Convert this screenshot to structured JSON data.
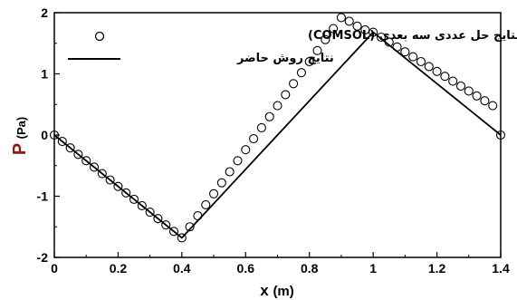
{
  "chart_data": {
    "type": "line",
    "xlabel_main": "x",
    "xlabel_unit": "(m)",
    "ylabel_main": "P",
    "ylabel_unit": "(Pa)",
    "xlim": [
      0,
      1.4
    ],
    "ylim": [
      -2,
      2
    ],
    "x_ticks": [
      "0",
      "0.2",
      "0.4",
      "0.6",
      "0.8",
      "1",
      "1.2",
      "1.4"
    ],
    "y_ticks": [
      "-2",
      "-1",
      "0",
      "1",
      "2"
    ],
    "grid": false,
    "legend_position": "top-left",
    "series": [
      {
        "name": "نتایج حل عددی سه بعدی (COMSOL)",
        "style": "markers",
        "marker": "open-circle",
        "x": [
          0,
          0.025,
          0.05,
          0.075,
          0.1,
          0.125,
          0.15,
          0.175,
          0.2,
          0.225,
          0.25,
          0.275,
          0.3,
          0.325,
          0.35,
          0.375,
          0.4,
          0.425,
          0.45,
          0.475,
          0.5,
          0.525,
          0.55,
          0.575,
          0.6,
          0.625,
          0.65,
          0.675,
          0.7,
          0.725,
          0.75,
          0.775,
          0.8,
          0.825,
          0.85,
          0.875,
          0.9,
          0.925,
          0.95,
          0.975,
          1.0,
          1.025,
          1.05,
          1.075,
          1.1,
          1.125,
          1.15,
          1.175,
          1.2,
          1.225,
          1.25,
          1.275,
          1.3,
          1.325,
          1.35,
          1.375,
          1.4
        ],
        "y": [
          0,
          -0.105,
          -0.21,
          -0.315,
          -0.42,
          -0.525,
          -0.63,
          -0.735,
          -0.84,
          -0.945,
          -1.05,
          -1.155,
          -1.26,
          -1.365,
          -1.47,
          -1.575,
          -1.68,
          -1.5,
          -1.32,
          -1.14,
          -0.96,
          -0.78,
          -0.6,
          -0.42,
          -0.24,
          -0.06,
          0.12,
          0.3,
          0.48,
          0.66,
          0.84,
          1.02,
          1.2,
          1.38,
          1.56,
          1.74,
          1.92,
          1.86,
          1.78,
          1.72,
          1.68,
          1.6,
          1.52,
          1.44,
          1.36,
          1.28,
          1.2,
          1.12,
          1.04,
          0.96,
          0.88,
          0.8,
          0.72,
          0.64,
          0.56,
          0.48,
          0.0
        ]
      },
      {
        "name": "نتایج روش حاضر",
        "style": "line",
        "x": [
          0,
          0.4,
          1.0,
          1.4
        ],
        "y": [
          0,
          -1.68,
          1.68,
          0
        ]
      }
    ]
  }
}
